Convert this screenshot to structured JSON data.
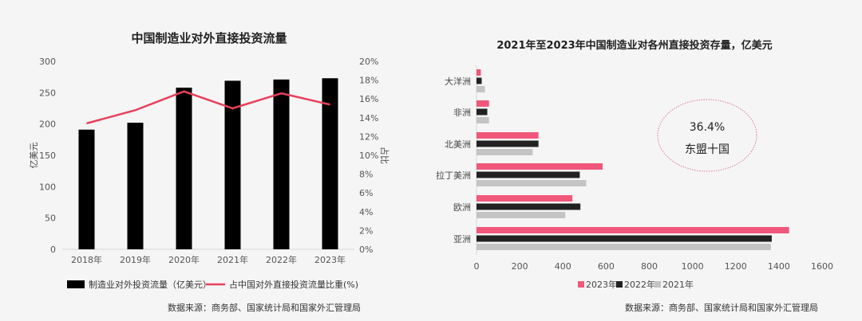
{
  "chart_data": [
    {
      "type": "bar+line",
      "title": "中国制造业对外直接投资流量",
      "categories": [
        "2018年",
        "2019年",
        "2020年",
        "2021年",
        "2022年",
        "2023年"
      ],
      "series": [
        {
          "name": "制造业对外投资流量（亿美元）",
          "type": "bar",
          "axis": "left",
          "color": "#000000",
          "values": [
            191,
            202,
            258,
            269,
            271,
            273
          ]
        },
        {
          "name": "占中国对外直接投资流量比重(%)",
          "type": "line",
          "axis": "right",
          "color": "#e8405a",
          "values": [
            13.4,
            14.8,
            16.8,
            15.0,
            16.6,
            15.4
          ]
        }
      ],
      "ylabel": "亿美元",
      "y2label": "占比",
      "ylim": [
        0,
        300
      ],
      "yticks": [
        "0",
        "50",
        "100",
        "150",
        "200",
        "250",
        "300"
      ],
      "y2lim": [
        0,
        20
      ],
      "y2ticks": [
        "0%",
        "2%",
        "4%",
        "6%",
        "8%",
        "10%",
        "12%",
        "14%",
        "16%",
        "18%",
        "20%"
      ],
      "legend": "bottom",
      "source": "数据来源：商务部、国家统计局和国家外汇管理局"
    },
    {
      "type": "bar",
      "orientation": "horizontal",
      "title": "2021年至2023年中国制造业对各州直接投资存量，亿美元",
      "categories": [
        "大洋洲",
        "非洲",
        "北美洲",
        "拉丁美洲",
        "欧洲",
        "亚洲"
      ],
      "series": [
        {
          "name": "2023年",
          "color": "#f0577a",
          "values": [
            20,
            58,
            287,
            584,
            444,
            1447
          ]
        },
        {
          "name": "2022年",
          "color": "#222222",
          "values": [
            24,
            50,
            287,
            478,
            481,
            1367
          ]
        },
        {
          "name": "2021年",
          "color": "#c4c4c4",
          "values": [
            39,
            58,
            260,
            508,
            411,
            1363
          ]
        }
      ],
      "xlim": [
        0,
        1600
      ],
      "xticks": [
        "0",
        "200",
        "400",
        "600",
        "800",
        "1000",
        "1200",
        "1400",
        "1600"
      ],
      "annotation": {
        "value": "36.4%",
        "label": "东盟十国"
      },
      "legend": "bottom",
      "source": "数据来源：商务部、国家统计局和国家外汇管理局"
    }
  ]
}
